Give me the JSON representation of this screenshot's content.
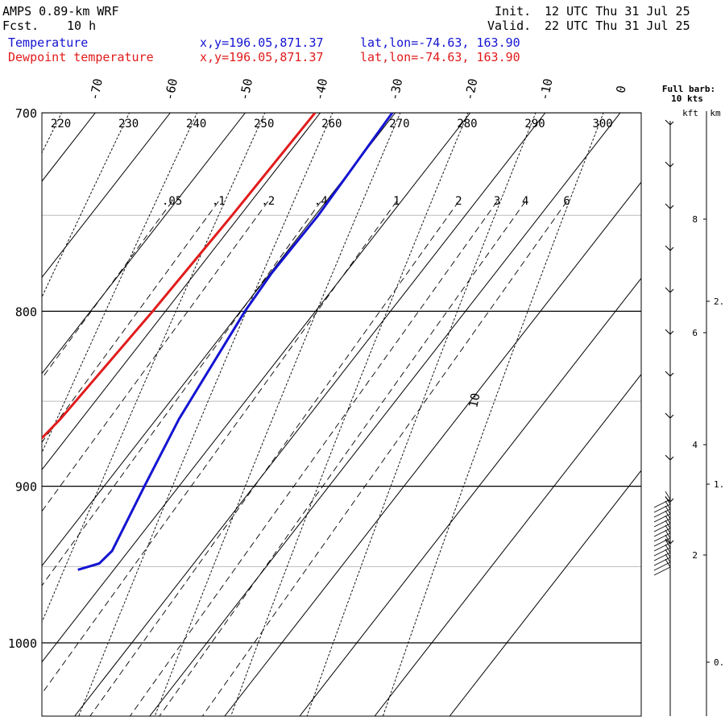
{
  "header": {
    "model": "AMPS 0.89-km WRF",
    "fcst_label": "Fcst.",
    "fcst_value": "10 h",
    "init_label": "Init.",
    "init_value": "12 UTC Thu 31 Jul 25",
    "valid_label": "Valid.",
    "valid_value": "22 UTC Thu 31 Jul 25",
    "temp_label": "Temperature",
    "dewp_label": "Dewpoint temperature",
    "temp_xy": "x,y=196.05,871.37",
    "dewp_xy": "x,y=196.05,871.37",
    "temp_latlon": "lat,lon=-74.63, 163.90",
    "dewp_latlon": "lat,lon=-74.63, 163.90"
  },
  "colors": {
    "temperature": "#1414d2",
    "dewpoint": "#e11b1b",
    "grid": "#000000",
    "minor_grid": "#bbbbbb"
  },
  "chart_data": {
    "type": "line",
    "chart_kind": "skew-T log-p sounding",
    "y_axis": {
      "unit": "hPa",
      "scale": "log",
      "range": [
        1040,
        700
      ],
      "ticks": [
        700,
        800,
        900,
        1000
      ],
      "tick_labels": [
        "700",
        "800",
        "900",
        "1000"
      ],
      "minor_lines": [
        750,
        850,
        950
      ]
    },
    "temperature_ticks": [
      "-70",
      "-60",
      "-50",
      "-40",
      "-30",
      "-20",
      "-10",
      "0",
      "10"
    ],
    "temperature_tick_values": [
      -70,
      -60,
      -50,
      -40,
      -30,
      -20,
      -10,
      0,
      10
    ],
    "dry_adiabats_K": [
      "220",
      "230",
      "240",
      "250",
      "260",
      "270",
      "280",
      "290",
      "300"
    ],
    "mixing_ratio_g_per_kg": [
      ".05",
      ".1",
      ".2",
      ".4",
      "1",
      "2",
      "3",
      "4",
      "6"
    ],
    "series": [
      {
        "name": "Temperature",
        "points": [
          [
            952,
            -24.8
          ],
          [
            948,
            -22.6
          ],
          [
            940,
            -22.2
          ],
          [
            900,
            -24.6
          ],
          [
            860,
            -27.0
          ],
          [
            800,
            -29.4
          ],
          [
            780,
            -29.8
          ],
          [
            750,
            -29.6
          ],
          [
            700,
            -30.4
          ]
        ]
      },
      {
        "name": "Dewpoint temperature",
        "points": [
          [
            952,
            -39.5
          ],
          [
            948,
            -45.9
          ],
          [
            940,
            -46.8
          ],
          [
            900,
            -44.5
          ],
          [
            860,
            -42.8
          ],
          [
            800,
            -41.7
          ],
          [
            750,
            -41.1
          ],
          [
            700,
            -40.7
          ]
        ]
      }
    ],
    "wind": {
      "title_line1": "Full barb:",
      "title_line2": "10 kts",
      "unit_labels": [
        "kft",
        "km"
      ],
      "kft_ticks": [
        "8",
        "6",
        "4",
        "2"
      ],
      "km_ticks": [
        "2.",
        "1.",
        "0."
      ]
    }
  }
}
